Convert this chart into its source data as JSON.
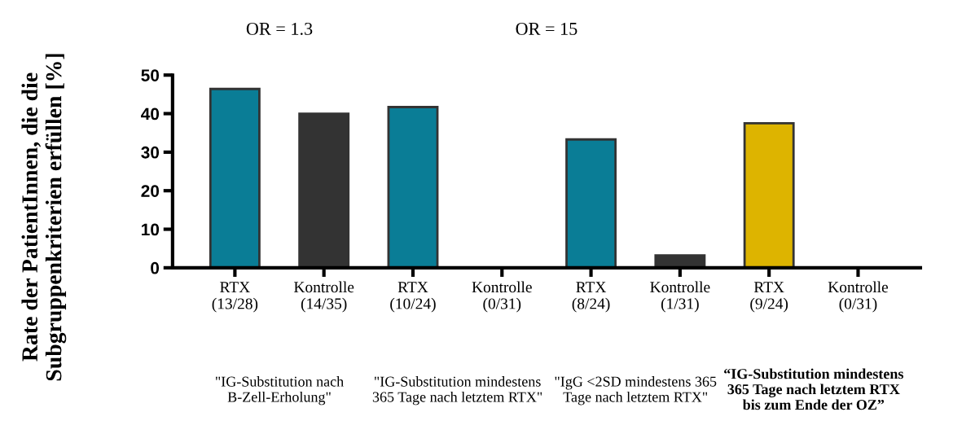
{
  "chart_data": {
    "type": "bar",
    "ylabel": "Rate der PatientInnen, die die Subgruppenkriterien erfüllen [%]",
    "categories": [
      "RTX\n(13/28)",
      "Kontrolle\n(14/35)",
      "RTX\n(10/24)",
      "Kontrolle\n(0/31)",
      "RTX\n(8/24)",
      "Kontrolle\n(1/31)",
      "RTX\n(9/24)",
      "Kontrolle\n(0/31)"
    ],
    "values": [
      46.4,
      40,
      41.7,
      0,
      33.3,
      3.2,
      37.5,
      0
    ],
    "colors": [
      "#0a7d96",
      "#333333",
      "#0a7d96",
      "#333333",
      "#0a7d96",
      "#333333",
      "#ddb400",
      "#333333"
    ],
    "ylim": [
      0,
      50
    ],
    "yticks": [
      0,
      10,
      20,
      30,
      40,
      50
    ],
    "grid": false,
    "annotations": [
      "OR = 1.3",
      "OR = 15",
      "\"IG-Substitution nach B-Zell-Erholung\"",
      "\"IG-Substitution mindestens 365 Tage nach letztem RTX\"",
      "\"IgG <2SD mindestens 365 Tage nach letztem RTX\"",
      "“IG-Substitution mindestens 365 Tage nach letztem RTX bis zum Ende der OZ”"
    ]
  }
}
